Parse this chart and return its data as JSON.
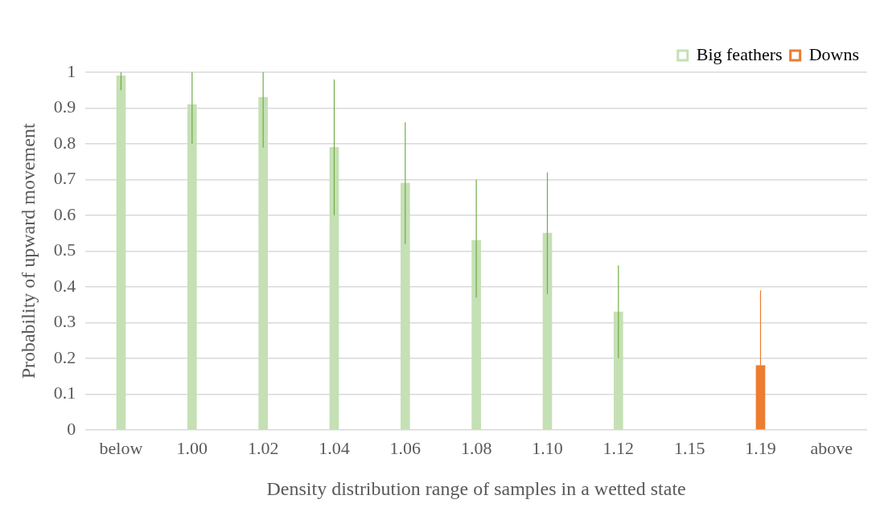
{
  "chart_data": {
    "type": "bar",
    "xlabel": "Density distribution range of samples in a wetted state",
    "ylabel": "Probability of upward movement",
    "categories": [
      "below",
      "1.00",
      "1.02",
      "1.04",
      "1.06",
      "1.08",
      "1.10",
      "1.12",
      "1.15",
      "1.19",
      "above"
    ],
    "series": [
      {
        "name": "Big feathers",
        "color": "#c5e0b4",
        "values": [
          0.99,
          0.91,
          0.93,
          0.79,
          0.69,
          0.53,
          0.55,
          0.33,
          null,
          null,
          null
        ],
        "errors": [
          [
            0.95,
            1.0
          ],
          [
            0.8,
            1.0
          ],
          [
            0.79,
            1.0
          ],
          [
            0.6,
            0.98
          ],
          [
            0.52,
            0.86
          ],
          [
            0.37,
            0.7
          ],
          [
            0.38,
            0.72
          ],
          [
            0.2,
            0.46
          ],
          null,
          null,
          null
        ]
      },
      {
        "name": "Downs",
        "color": "#ed7d31",
        "values": [
          null,
          null,
          null,
          null,
          null,
          null,
          null,
          null,
          null,
          0.18,
          null
        ],
        "errors": [
          null,
          null,
          null,
          null,
          null,
          null,
          null,
          null,
          null,
          [
            0.18,
            0.39
          ],
          null
        ]
      }
    ],
    "ylim": [
      0,
      1
    ],
    "yticks": [
      0,
      0.1,
      0.2,
      0.3,
      0.4,
      0.5,
      0.6,
      0.7,
      0.8,
      0.9,
      1
    ],
    "grid": "y",
    "legend": "top right"
  }
}
